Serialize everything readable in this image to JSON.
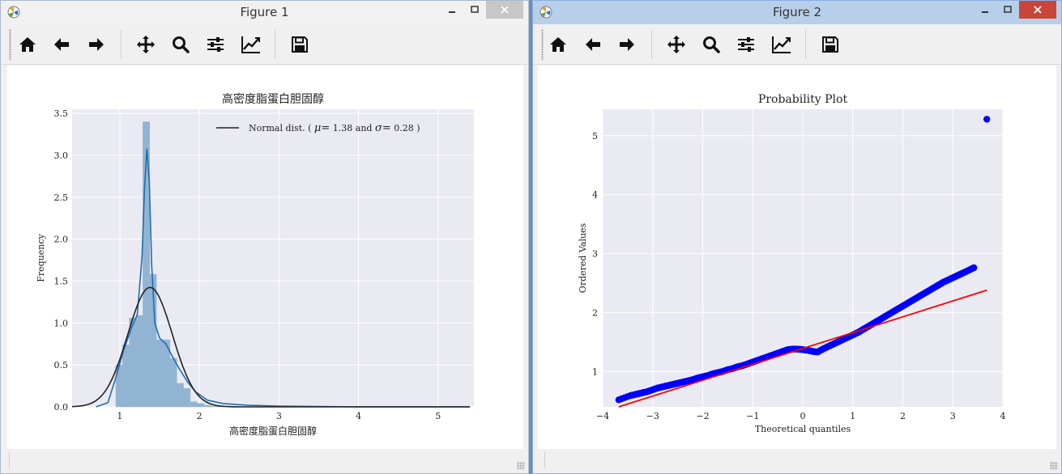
{
  "colors": {
    "axes_bg": "#eaeaf2",
    "grid": "#ffffff",
    "hist_fill": "#92b4d3",
    "kde_line": "#1f6faf",
    "normal_line": "#222222",
    "qq_points": "#0000ff",
    "qq_fit": "#ff0000",
    "close_active": "#c9453a"
  },
  "toolbar_icons": [
    "home-icon",
    "back-arrow-icon",
    "forward-arrow-icon",
    "pan-icon",
    "zoom-icon",
    "configure-subplots-icon",
    "edit-axis-icon",
    "save-icon"
  ],
  "figure1": {
    "window_title": "Figure 1",
    "chart_data": {
      "type": "bar",
      "title": "高密度脂蛋白胆固醇",
      "xlabel": "高密度脂蛋白胆固醇",
      "ylabel": "Frequency",
      "xlim": [
        0.4,
        5.45
      ],
      "ylim": [
        0,
        3.55
      ],
      "xticks": [
        "1",
        "2",
        "3",
        "4",
        "5"
      ],
      "yticks": [
        "0.0",
        "0.5",
        "1.0",
        "1.5",
        "2.0",
        "2.5",
        "3.0",
        "3.5"
      ],
      "legend": {
        "label_prefix": "Normal dist. (",
        "mu_symbol": "μ=",
        "mu": "1.38",
        "and": "and",
        "sigma_symbol": "σ=",
        "sigma": "0.28",
        "label_suffix": ")",
        "placement": "upper right"
      },
      "grid": true,
      "bin_width": 0.085,
      "histogram": {
        "bin_left": [
          0.95,
          1.035,
          1.12,
          1.205,
          1.29,
          1.375,
          1.46,
          1.545,
          1.63,
          1.715,
          1.8,
          1.885,
          1.97,
          2.055,
          2.14,
          2.225,
          2.31
        ],
        "values": [
          0.5,
          0.74,
          1.06,
          1.09,
          3.4,
          1.58,
          0.8,
          0.8,
          0.58,
          0.28,
          0.22,
          0.06,
          0.04,
          0.02,
          0.01,
          0.01,
          0.0
        ]
      },
      "kde": {
        "x": [
          0.7,
          0.85,
          0.95,
          1.05,
          1.15,
          1.22,
          1.28,
          1.31,
          1.34,
          1.37,
          1.4,
          1.44,
          1.5,
          1.58,
          1.66,
          1.75,
          1.85,
          1.95,
          2.1,
          2.3,
          2.6,
          3.0,
          4.0,
          5.4
        ],
        "y": [
          0.0,
          0.05,
          0.35,
          0.68,
          0.95,
          1.1,
          1.8,
          2.6,
          3.08,
          2.7,
          1.7,
          1.0,
          0.82,
          0.75,
          0.6,
          0.45,
          0.3,
          0.18,
          0.08,
          0.04,
          0.02,
          0.01,
          0.0,
          0.0
        ]
      },
      "normal_fit": {
        "mu": 1.38,
        "sigma": 0.28,
        "x_range": [
          0.4,
          5.4
        ]
      }
    }
  },
  "figure2": {
    "window_title": "Figure 2",
    "chart_data": {
      "type": "scatter",
      "title": "Probability Plot",
      "xlabel": "Theoretical quantiles",
      "ylabel": "Ordered Values",
      "xlim": [
        -4.0,
        4.0
      ],
      "ylim": [
        0.4,
        5.45
      ],
      "xticks": [
        "−4",
        "−3",
        "−2",
        "−1",
        "0",
        "1",
        "2",
        "3",
        "4"
      ],
      "yticks": [
        "1",
        "2",
        "3",
        "4",
        "5"
      ],
      "grid": true,
      "points": {
        "x": [
          -3.68,
          -3.45,
          -3.3,
          -3.2,
          -3.1,
          -3.0,
          -2.9,
          -2.8,
          -2.7,
          -2.6,
          -2.5,
          -2.4,
          -2.3,
          -2.2,
          -2.1,
          -2.0,
          -1.9,
          -1.8,
          -1.7,
          -1.6,
          -1.5,
          -1.4,
          -1.3,
          -1.2,
          -1.1,
          -1.0,
          -0.9,
          -0.8,
          -0.7,
          -0.6,
          -0.5,
          -0.4,
          -0.3,
          -0.2,
          -0.1,
          0.0,
          0.1,
          0.2,
          0.3,
          0.4,
          0.5,
          0.6,
          0.7,
          0.8,
          0.9,
          1.0,
          1.1,
          1.2,
          1.3,
          1.4,
          1.5,
          1.6,
          1.7,
          1.8,
          1.9,
          2.0,
          2.1,
          2.2,
          2.3,
          2.4,
          2.5,
          2.6,
          2.7,
          2.8,
          2.9,
          3.0,
          3.1,
          3.2,
          3.3,
          3.42,
          3.68
        ],
        "y": [
          0.52,
          0.59,
          0.62,
          0.64,
          0.66,
          0.69,
          0.72,
          0.74,
          0.76,
          0.78,
          0.8,
          0.82,
          0.84,
          0.86,
          0.89,
          0.91,
          0.93,
          0.96,
          0.98,
          1.0,
          1.03,
          1.05,
          1.08,
          1.1,
          1.13,
          1.16,
          1.19,
          1.22,
          1.25,
          1.28,
          1.31,
          1.34,
          1.37,
          1.38,
          1.38,
          1.37,
          1.36,
          1.34,
          1.33,
          1.38,
          1.42,
          1.46,
          1.5,
          1.54,
          1.58,
          1.62,
          1.66,
          1.71,
          1.76,
          1.81,
          1.86,
          1.91,
          1.96,
          2.01,
          2.06,
          2.11,
          2.16,
          2.21,
          2.26,
          2.31,
          2.36,
          2.41,
          2.46,
          2.51,
          2.55,
          2.59,
          2.63,
          2.67,
          2.71,
          2.76,
          5.28
        ]
      },
      "fit_line": {
        "x": [
          -3.68,
          3.68
        ],
        "y": [
          0.4,
          2.38
        ]
      }
    }
  }
}
